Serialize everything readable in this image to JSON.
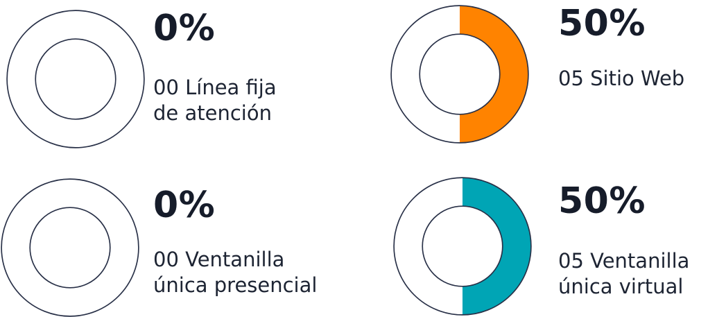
{
  "chart_data": {
    "type": "pie",
    "items": [
      {
        "percent_text": "0%",
        "value": 0,
        "label": "00 Línea fija\nde atención",
        "color": "#ff8300"
      },
      {
        "percent_text": "50%",
        "value": 50,
        "label": "05 Sitio Web",
        "color": "#ff8300"
      },
      {
        "percent_text": "0%",
        "value": 0,
        "label": "00 Ventanilla\núnica presencial",
        "color": "#00a5b5"
      },
      {
        "percent_text": "50%",
        "value": 50,
        "label": "05 Ventanilla\núnica virtual",
        "color": "#00a5b5"
      }
    ]
  }
}
